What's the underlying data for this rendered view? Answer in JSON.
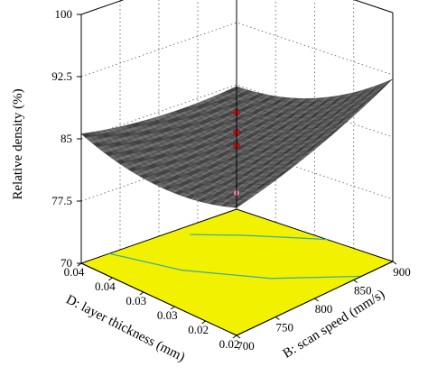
{
  "chart_data": {
    "type": "surface3d",
    "zlabel": "Relative density (%)",
    "xlabel": "D: layer thickness (mm)",
    "ylabel": "B: scan speed (mm/s)",
    "zticks": [
      "70",
      "77.5",
      "85",
      "92.5",
      "100"
    ],
    "zlim": [
      70,
      100
    ],
    "xticks": [
      "0.02",
      "0.02",
      "0.03",
      "0.03",
      "0.04",
      "0.04"
    ],
    "xlim": [
      0.02,
      0.04
    ],
    "yticks": [
      "700",
      "750",
      "800",
      "850",
      "900"
    ],
    "ylim": [
      700,
      900
    ],
    "surface_corners": {
      "x0.04_y700": 85.6,
      "x0.04_y900": 84.8,
      "x0.02_y900": 92.0,
      "x0.02_y700": 85.4
    },
    "design_points": [
      {
        "z": 88.9,
        "color": "#cc1111"
      },
      {
        "z": 86.5,
        "color": "#cc1111"
      },
      {
        "z": 84.9,
        "color": "#cc1111"
      },
      {
        "z": 79.2,
        "color": "#e58a9a"
      }
    ],
    "floor_color": "#f2f200",
    "contour_color": "#3fae9a",
    "surface_color": "#222222",
    "frame_color": "#000000"
  }
}
